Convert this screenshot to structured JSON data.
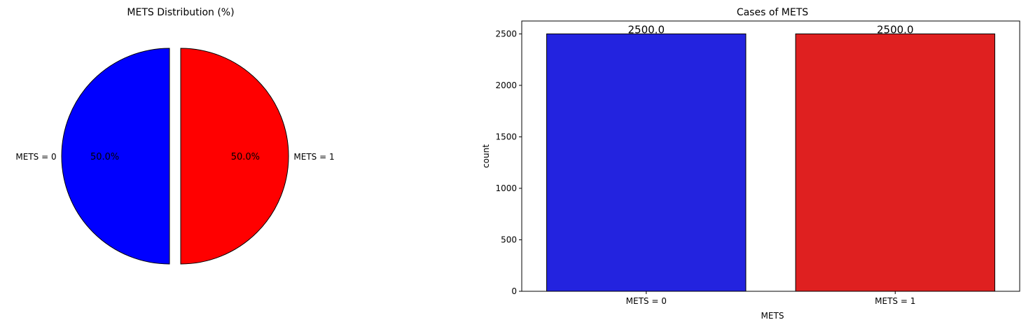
{
  "colors": {
    "pie_mets0": "#0000ff",
    "pie_mets1": "#ff0000",
    "bar_mets0": "#2323df",
    "bar_mets1": "#df2020",
    "edge": "#000000"
  },
  "chart_data": [
    {
      "type": "pie",
      "title": "METS Distribution (%)",
      "labels": [
        "METS = 0",
        "METS = 1"
      ],
      "values": [
        50.0,
        50.0
      ],
      "pct_labels": [
        "50.0%",
        "50.0%"
      ],
      "explode": true,
      "colors": [
        "#0000ff",
        "#ff0000"
      ]
    },
    {
      "type": "bar",
      "title": "Cases of METS",
      "categories": [
        "METS = 0",
        "METS = 1"
      ],
      "values": [
        2500,
        2500
      ],
      "data_labels": [
        "2500.0",
        "2500.0"
      ],
      "xlabel": "METS",
      "ylabel": "count",
      "ylim": [
        0,
        2625
      ],
      "yticks": [
        0,
        500,
        1000,
        1500,
        2000,
        2500
      ],
      "colors": [
        "#2323df",
        "#df2020"
      ]
    }
  ]
}
